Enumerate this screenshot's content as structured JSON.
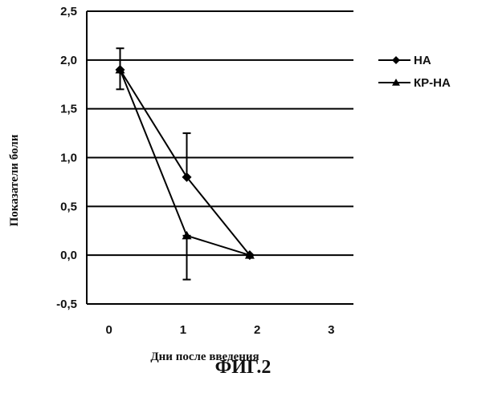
{
  "chart_data": {
    "type": "line",
    "title": "",
    "xlabel": "Дни после введения",
    "ylabel": "Показатели боли",
    "xlim": [
      -0.3,
      3.3
    ],
    "ylim": [
      -0.5,
      2.5
    ],
    "x_ticks": [
      "0",
      "1",
      "2",
      "3"
    ],
    "y_ticks": [
      "2,5",
      "2,0",
      "1,5",
      "1,0",
      "0,5",
      "0,0",
      "-0,5"
    ],
    "grid": "horizontal",
    "legend_position": "top-right",
    "series": [
      {
        "name": "НА",
        "marker": "diamond",
        "color": "#000000",
        "points": [
          {
            "x": 0.15,
            "y": 1.9,
            "err_low": 1.7,
            "err_high": 2.12
          },
          {
            "x": 1.05,
            "y": 0.8,
            "err_low": 0.8,
            "err_high": 1.25
          },
          {
            "x": 1.9,
            "y": 0.0
          }
        ]
      },
      {
        "name": "КР-НА",
        "marker": "triangle",
        "color": "#000000",
        "points": [
          {
            "x": 0.15,
            "y": 1.9
          },
          {
            "x": 1.05,
            "y": 0.2,
            "err_low": -0.25,
            "err_high": 0.2
          },
          {
            "x": 1.9,
            "y": 0.0
          }
        ]
      }
    ]
  },
  "caption": "ФИГ.2"
}
